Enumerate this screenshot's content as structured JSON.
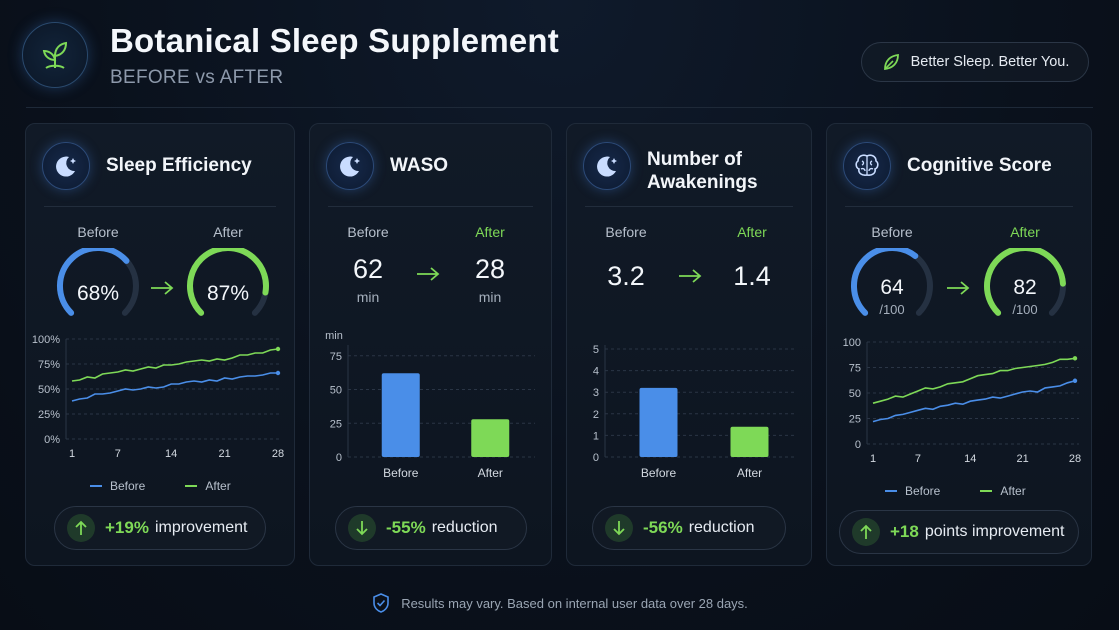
{
  "header": {
    "title": "Botanical Sleep Supplement",
    "subtitle": "BEFORE vs AFTER",
    "tagline": "Better Sleep. Better You."
  },
  "footer": {
    "note": "Results may vary. Based on internal user data over 28 days."
  },
  "colors": {
    "before": "#4a8ee8",
    "after": "#7ed957",
    "background": "#0a111c"
  },
  "cards": {
    "sleep_efficiency": {
      "title": "Sleep Efficiency",
      "icon": "moon-stars-icon",
      "before_label": "Before",
      "after_label": "After",
      "before_value": "68%",
      "after_value": "87%",
      "before_level": 0.68,
      "after_level": 0.87,
      "legend_before": "Before",
      "legend_after": "After",
      "result_value": "+19%",
      "result_text": "improvement"
    },
    "waso": {
      "title": "WASO",
      "icon": "moon-stars-icon",
      "before_label": "Before",
      "after_label": "After",
      "before_value": "62",
      "after_value": "28",
      "before_unit": "min",
      "after_unit": "min",
      "result_value": "-55%",
      "result_text": "reduction"
    },
    "awakenings": {
      "title_line1": "Number of",
      "title_line2": "Awakenings",
      "icon": "moon-stars-icon",
      "before_label": "Before",
      "after_label": "After",
      "before_value": "3.2",
      "after_value": "1.4",
      "result_value": "-56%",
      "result_text": "reduction"
    },
    "cognitive": {
      "title": "Cognitive Score",
      "icon": "brain-icon",
      "before_label": "Before",
      "after_label": "After",
      "before_value": "64",
      "after_value": "82",
      "before_unit": "/100",
      "after_unit": "/100",
      "before_level": 0.64,
      "after_level": 0.82,
      "legend_before": "Before",
      "legend_after": "After",
      "result_value": "+18",
      "result_text": "points improvement"
    }
  },
  "chart_data": [
    {
      "type": "line",
      "x": [
        1,
        2,
        3,
        4,
        5,
        6,
        7,
        8,
        9,
        10,
        11,
        12,
        13,
        14,
        15,
        16,
        17,
        18,
        19,
        20,
        21,
        22,
        23,
        24,
        25,
        26,
        27,
        28
      ],
      "xticks": [
        1,
        7,
        14,
        21,
        28
      ],
      "ylim": [
        0,
        100
      ],
      "yticks": [
        "0%",
        "25%",
        "50%",
        "75%",
        "100%"
      ],
      "ytick_values": [
        0,
        25,
        50,
        75,
        100
      ],
      "series": [
        {
          "name": "Before",
          "values": [
            38,
            40,
            41,
            45,
            45,
            46,
            48,
            50,
            49,
            50,
            52,
            51,
            52,
            55,
            55,
            57,
            58,
            57,
            59,
            58,
            61,
            60,
            62,
            63,
            63,
            64,
            66,
            66
          ]
        },
        {
          "name": "After",
          "values": [
            58,
            59,
            62,
            61,
            65,
            66,
            67,
            69,
            68,
            70,
            72,
            71,
            74,
            74,
            75,
            77,
            78,
            79,
            78,
            80,
            79,
            81,
            84,
            84,
            86,
            86,
            89,
            90
          ]
        }
      ]
    },
    {
      "type": "bar",
      "categories": [
        "Before",
        "After"
      ],
      "values": [
        62,
        28
      ],
      "ylabel": "min",
      "ylim": [
        0,
        80
      ],
      "yticks": [
        0,
        25,
        50,
        75
      ]
    },
    {
      "type": "bar",
      "categories": [
        "Before",
        "After"
      ],
      "values": [
        3.2,
        1.4
      ],
      "ylim": [
        0,
        5
      ],
      "yticks": [
        0,
        1,
        2,
        3,
        4,
        5
      ]
    },
    {
      "type": "line",
      "x": [
        1,
        2,
        3,
        4,
        5,
        6,
        7,
        8,
        9,
        10,
        11,
        12,
        13,
        14,
        15,
        16,
        17,
        18,
        19,
        20,
        21,
        22,
        23,
        24,
        25,
        26,
        27,
        28
      ],
      "xticks": [
        1,
        7,
        14,
        21,
        28
      ],
      "ylim": [
        0,
        100
      ],
      "yticks": [
        "0",
        "25",
        "50",
        "75",
        "100"
      ],
      "ytick_values": [
        0,
        25,
        50,
        75,
        100
      ],
      "series": [
        {
          "name": "Before",
          "values": [
            22,
            24,
            25,
            28,
            29,
            31,
            33,
            35,
            34,
            37,
            38,
            40,
            39,
            42,
            43,
            44,
            46,
            45,
            47,
            49,
            51,
            52,
            51,
            55,
            56,
            57,
            60,
            62
          ]
        },
        {
          "name": "After",
          "values": [
            40,
            42,
            44,
            47,
            46,
            49,
            52,
            55,
            54,
            56,
            59,
            60,
            61,
            64,
            67,
            68,
            69,
            72,
            72,
            74,
            75,
            76,
            77,
            78,
            80,
            83,
            83,
            84
          ]
        }
      ]
    }
  ]
}
